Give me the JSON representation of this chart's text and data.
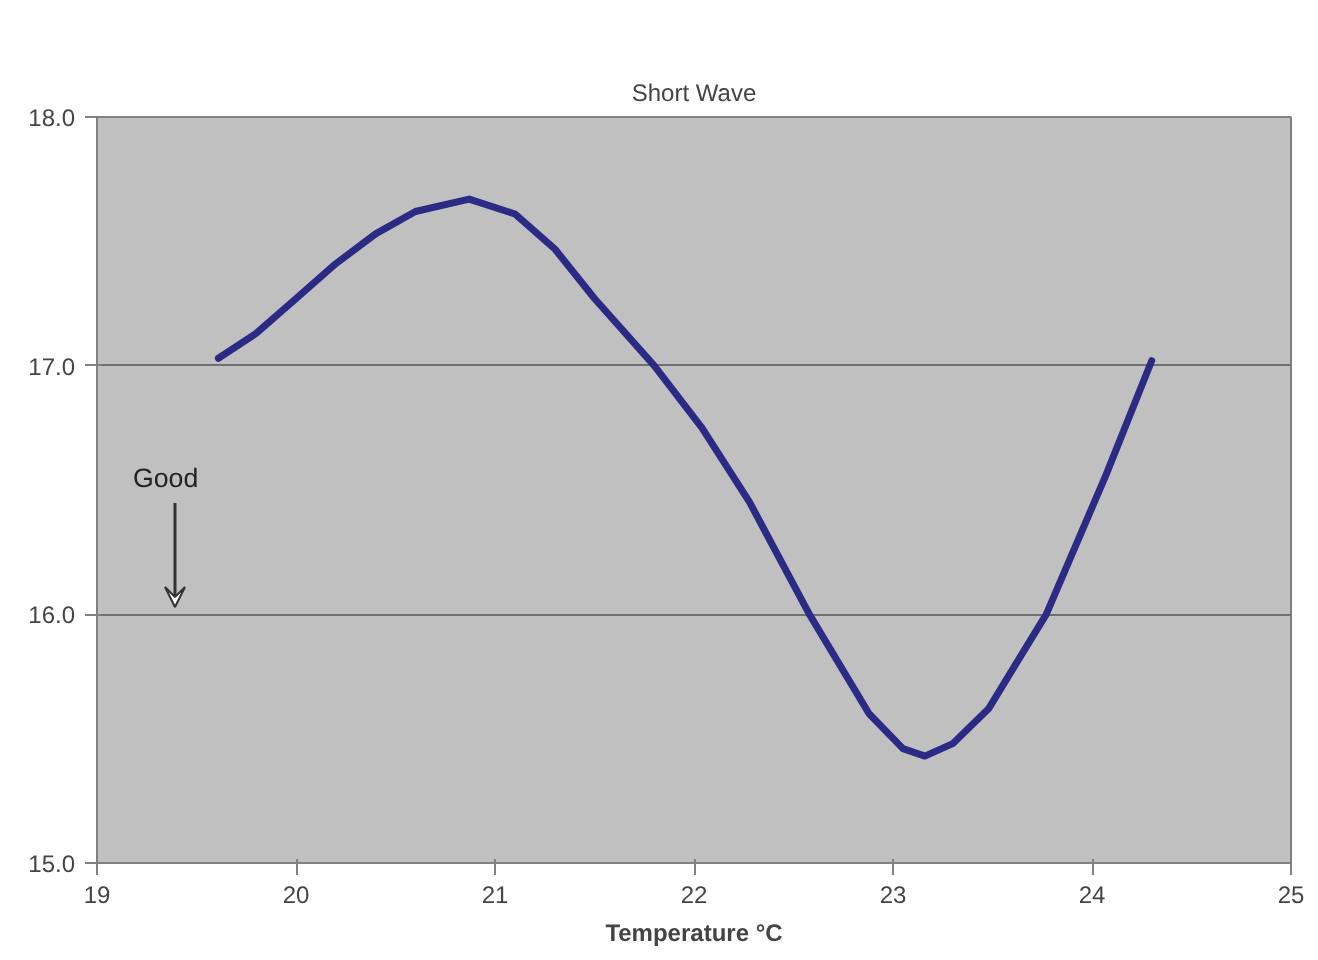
{
  "chart_data": {
    "type": "line",
    "title": "Short Wave",
    "xlabel": "Temperature °C",
    "annotations": [
      "Good"
    ],
    "series": [
      {
        "color": "#2b2b86",
        "x": [
          19.61,
          19.8,
          20.0,
          20.2,
          20.4,
          20.6,
          20.87,
          21.1,
          21.3,
          21.5,
          21.8,
          22.04,
          22.28,
          22.58,
          22.88,
          23.05,
          23.16,
          23.3,
          23.48,
          23.77,
          24.07,
          24.3
        ],
        "values": [
          17.03,
          17.13,
          17.27,
          17.41,
          17.53,
          17.62,
          17.67,
          17.61,
          17.47,
          17.27,
          17.0,
          16.75,
          16.45,
          16.0,
          15.6,
          15.46,
          15.43,
          15.48,
          15.62,
          16.0,
          16.56,
          17.02
        ]
      }
    ],
    "xlim": [
      19,
      25
    ],
    "xticks": [
      19,
      20,
      21,
      22,
      23,
      24,
      25
    ],
    "ylim": [
      15,
      18
    ],
    "yticks": [
      {
        "value": 15,
        "label": "15.0"
      },
      {
        "value": 16,
        "label": "16.0"
      },
      {
        "value": 17,
        "label": "17.0"
      },
      {
        "value": 18,
        "label": "18.0"
      }
    ],
    "grid": "y",
    "line_style": "solid",
    "marker": "none"
  }
}
